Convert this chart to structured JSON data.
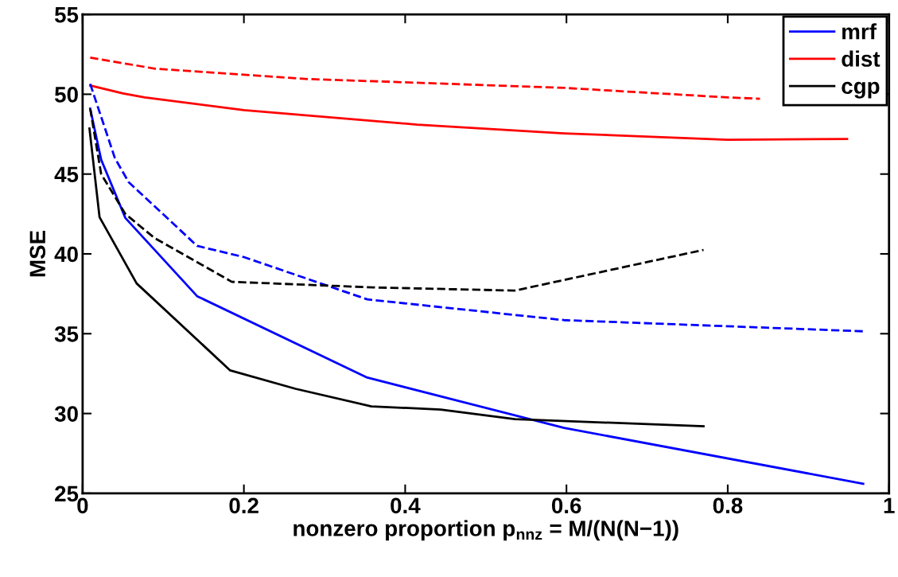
{
  "chart_data": {
    "type": "line",
    "xlabel": "nonzero proportion p$_{nnz}$ = M/(N(N−1))",
    "ylabel": "MSE",
    "xlim": [
      0,
      1
    ],
    "ylim": [
      25,
      55
    ],
    "xticks": [
      0,
      0.2,
      0.4,
      0.6,
      0.8,
      1
    ],
    "yticks": [
      25,
      30,
      35,
      40,
      45,
      50,
      55
    ],
    "grid": false,
    "legend": "top right",
    "marker": "none",
    "series": [
      {
        "name": "mrf",
        "color": "#0000ff",
        "line_style": "solid",
        "x": [
          0.0094,
          0.023,
          0.053,
          0.142,
          0.353,
          0.597,
          0.968
        ],
        "values": [
          49.1,
          45.9,
          42.25,
          37.35,
          32.25,
          29.1,
          25.6
        ]
      },
      {
        "name": "dist",
        "color": "#ff0000",
        "line_style": "solid",
        "x": [
          0.0094,
          0.05,
          0.077,
          0.2,
          0.415,
          0.597,
          0.8,
          0.948
        ],
        "values": [
          50.55,
          50.05,
          49.8,
          49.0,
          48.1,
          47.55,
          47.15,
          47.2
        ]
      },
      {
        "name": "cgp",
        "color": "#000000",
        "line_style": "solid",
        "x": [
          0.0085,
          0.021,
          0.067,
          0.183,
          0.264,
          0.358,
          0.444,
          0.536,
          0.77
        ],
        "values": [
          47.85,
          42.3,
          38.15,
          32.7,
          31.55,
          30.45,
          30.25,
          29.65,
          29.2
        ]
      },
      {
        "color": "#0000ff",
        "line_style": "dashed",
        "x": [
          0.0094,
          0.04,
          0.057,
          0.142,
          0.2,
          0.353,
          0.597,
          0.968
        ],
        "values": [
          50.65,
          46.0,
          44.5,
          40.5,
          39.8,
          37.15,
          35.85,
          35.15
        ]
      },
      {
        "color": "#ff0000",
        "line_style": "dashed",
        "x": [
          0.0094,
          0.09,
          0.28,
          0.37,
          0.597,
          0.8,
          0.84
        ],
        "values": [
          52.3,
          51.6,
          50.95,
          50.8,
          50.4,
          49.8,
          49.72
        ]
      },
      {
        "color": "#000000",
        "line_style": "dashed",
        "x": [
          0.0094,
          0.023,
          0.053,
          0.089,
          0.185,
          0.36,
          0.536,
          0.77
        ],
        "values": [
          49.1,
          45.0,
          42.5,
          41.0,
          38.25,
          37.9,
          37.7,
          40.25
        ]
      }
    ]
  }
}
